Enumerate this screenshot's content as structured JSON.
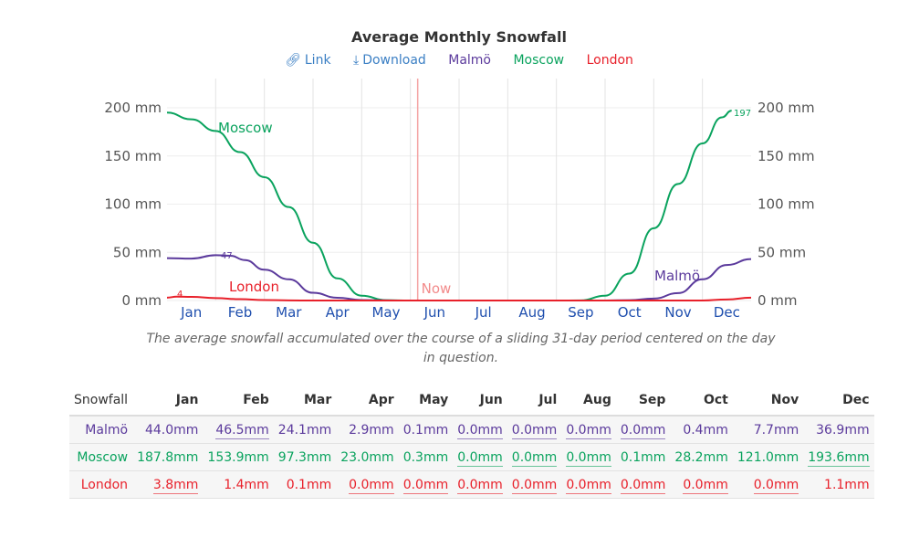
{
  "title": "Average Monthly Snowfall",
  "legend": {
    "link": "Link",
    "download": "Download",
    "items": [
      "Malmö",
      "Moscow",
      "London"
    ]
  },
  "colors": {
    "malmo": "#5b3a9c",
    "moscow": "#0aa35e",
    "london": "#e8202a",
    "now": "#f5a3a3",
    "link": "#3b7fc4",
    "months": "#1f4fae"
  },
  "caption": "The average snowfall accumulated over the course of a sliding 31-day period centered on the day in question.",
  "chart_data": {
    "type": "line",
    "title": "Average Monthly Snowfall",
    "categories": [
      "Jan",
      "Feb",
      "Mar",
      "Apr",
      "May",
      "Jun",
      "Jul",
      "Aug",
      "Sep",
      "Oct",
      "Nov",
      "Dec"
    ],
    "yticks": [
      "0 mm",
      "50 mm",
      "100 mm",
      "150 mm",
      "200 mm"
    ],
    "ylim": [
      0,
      200
    ],
    "now_label": "Now",
    "now_month": 5.15,
    "series": [
      {
        "name": "Moscow",
        "color": "#0aa35e",
        "peak_label": "197",
        "points": [
          [
            0,
            195
          ],
          [
            0.5,
            188
          ],
          [
            1,
            176
          ],
          [
            1.5,
            154
          ],
          [
            2,
            128
          ],
          [
            2.5,
            97
          ],
          [
            3,
            60
          ],
          [
            3.5,
            23
          ],
          [
            4,
            5
          ],
          [
            4.5,
            0.3
          ],
          [
            5,
            0
          ],
          [
            8,
            0
          ],
          [
            8.5,
            0.1
          ],
          [
            9,
            5
          ],
          [
            9.5,
            28
          ],
          [
            10,
            75
          ],
          [
            10.5,
            121
          ],
          [
            11,
            163
          ],
          [
            11.4,
            190
          ],
          [
            11.6,
            197
          ]
        ]
      },
      {
        "name": "Malmö",
        "color": "#5b3a9c",
        "peak_label": "47",
        "points": [
          [
            0,
            44
          ],
          [
            0.5,
            43.5
          ],
          [
            1,
            47
          ],
          [
            1.3,
            46.5
          ],
          [
            1.6,
            42
          ],
          [
            2,
            32
          ],
          [
            2.5,
            22
          ],
          [
            3,
            8
          ],
          [
            3.5,
            2.9
          ],
          [
            4,
            0.5
          ],
          [
            4.5,
            0.1
          ],
          [
            5,
            0
          ],
          [
            9,
            0
          ],
          [
            9.5,
            0.4
          ],
          [
            10,
            2
          ],
          [
            10.5,
            7.7
          ],
          [
            11,
            22
          ],
          [
            11.5,
            36.9
          ],
          [
            12,
            43
          ]
        ]
      },
      {
        "name": "London",
        "color": "#e8202a",
        "peak_label": "4",
        "points": [
          [
            0,
            3
          ],
          [
            0.2,
            4
          ],
          [
            0.5,
            3.8
          ],
          [
            1,
            2.5
          ],
          [
            1.5,
            1.4
          ],
          [
            2,
            0.5
          ],
          [
            2.5,
            0.1
          ],
          [
            3,
            0
          ],
          [
            11,
            0
          ],
          [
            11.5,
            1.1
          ],
          [
            12,
            3
          ]
        ]
      }
    ]
  },
  "table": {
    "header": [
      "Snowfall",
      "Jan",
      "Feb",
      "Mar",
      "Apr",
      "May",
      "Jun",
      "Jul",
      "Aug",
      "Sep",
      "Oct",
      "Nov",
      "Dec"
    ],
    "rows": [
      {
        "name": "Malmö",
        "color": "#5b3a9c",
        "values": [
          "44.0mm",
          "46.5mm",
          "24.1mm",
          "2.9mm",
          "0.1mm",
          "0.0mm",
          "0.0mm",
          "0.0mm",
          "0.0mm",
          "0.4mm",
          "7.7mm",
          "36.9mm"
        ],
        "underlined": [
          1,
          5,
          6,
          7,
          8
        ]
      },
      {
        "name": "Moscow",
        "color": "#0aa35e",
        "values": [
          "187.8mm",
          "153.9mm",
          "97.3mm",
          "23.0mm",
          "0.3mm",
          "0.0mm",
          "0.0mm",
          "0.0mm",
          "0.1mm",
          "28.2mm",
          "121.0mm",
          "193.6mm"
        ],
        "underlined": [
          5,
          6,
          7,
          11
        ]
      },
      {
        "name": "London",
        "color": "#e8202a",
        "values": [
          "3.8mm",
          "1.4mm",
          "0.1mm",
          "0.0mm",
          "0.0mm",
          "0.0mm",
          "0.0mm",
          "0.0mm",
          "0.0mm",
          "0.0mm",
          "0.0mm",
          "1.1mm"
        ],
        "underlined": [
          0,
          3,
          4,
          5,
          6,
          7,
          8,
          9,
          10
        ]
      }
    ]
  }
}
